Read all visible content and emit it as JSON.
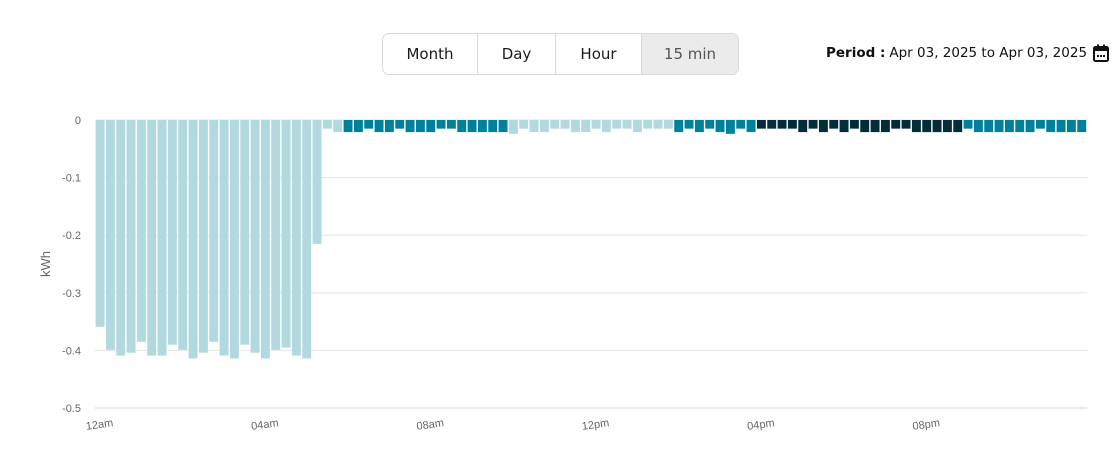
{
  "granularity": {
    "options": [
      "Month",
      "Day",
      "Hour",
      "15 min"
    ],
    "selected": "15 min"
  },
  "period": {
    "label": "Period :",
    "value": "Apr 03, 2025 to Apr 03, 2025",
    "icon": "calendar-icon"
  },
  "colors": {
    "light": "#b2d9df",
    "teal": "#00819b",
    "dark": "#032d38",
    "grid": "#e6e6e6",
    "baseline": "#ccd6eb"
  },
  "chart_data": {
    "type": "bar",
    "title": "",
    "xlabel": "",
    "ylabel": "kWh",
    "ylim": [
      -0.5,
      0
    ],
    "yticks": [
      "0",
      "-0.1",
      "-0.2",
      "-0.3",
      "-0.4",
      "-0.5"
    ],
    "xtick_labels": [
      "12am",
      "04am",
      "08am",
      "12pm",
      "04pm",
      "08pm"
    ],
    "interval": "15 min",
    "grid": true,
    "values": [
      -0.359,
      -0.399,
      -0.409,
      -0.404,
      -0.385,
      -0.409,
      -0.409,
      -0.39,
      -0.399,
      -0.414,
      -0.404,
      -0.385,
      -0.409,
      -0.414,
      -0.39,
      -0.404,
      -0.414,
      -0.399,
      -0.395,
      -0.409,
      -0.414,
      -0.215,
      -0.015,
      -0.021,
      -0.021,
      -0.021,
      -0.015,
      -0.021,
      -0.021,
      -0.015,
      -0.021,
      -0.021,
      -0.021,
      -0.015,
      -0.015,
      -0.021,
      -0.021,
      -0.021,
      -0.021,
      -0.021,
      -0.024,
      -0.015,
      -0.021,
      -0.021,
      -0.015,
      -0.015,
      -0.021,
      -0.021,
      -0.015,
      -0.021,
      -0.015,
      -0.015,
      -0.021,
      -0.015,
      -0.015,
      -0.015,
      -0.021,
      -0.015,
      -0.021,
      -0.015,
      -0.021,
      -0.024,
      -0.015,
      -0.021,
      -0.015,
      -0.015,
      -0.015,
      -0.015,
      -0.021,
      -0.015,
      -0.021,
      -0.015,
      -0.021,
      -0.015,
      -0.021,
      -0.021,
      -0.021,
      -0.015,
      -0.015,
      -0.021,
      -0.021,
      -0.021,
      -0.021,
      -0.021,
      -0.015,
      -0.021,
      -0.021,
      -0.021,
      -0.021,
      -0.021,
      -0.021,
      -0.015,
      -0.021,
      -0.021,
      -0.021,
      -0.021
    ],
    "bar_tiers": [
      "light",
      "light",
      "light",
      "light",
      "light",
      "light",
      "light",
      "light",
      "light",
      "light",
      "light",
      "light",
      "light",
      "light",
      "light",
      "light",
      "light",
      "light",
      "light",
      "light",
      "light",
      "light",
      "light",
      "light",
      "teal",
      "teal",
      "teal",
      "teal",
      "teal",
      "teal",
      "teal",
      "teal",
      "teal",
      "teal",
      "teal",
      "teal",
      "teal",
      "teal",
      "teal",
      "teal",
      "light",
      "light",
      "light",
      "light",
      "light",
      "light",
      "light",
      "light",
      "light",
      "light",
      "light",
      "light",
      "light",
      "light",
      "light",
      "light",
      "teal",
      "teal",
      "teal",
      "teal",
      "teal",
      "teal",
      "teal",
      "teal",
      "dark",
      "dark",
      "dark",
      "dark",
      "dark",
      "dark",
      "dark",
      "dark",
      "dark",
      "dark",
      "dark",
      "dark",
      "dark",
      "dark",
      "dark",
      "dark",
      "dark",
      "dark",
      "dark",
      "dark",
      "teal",
      "teal",
      "teal",
      "teal",
      "teal",
      "teal",
      "teal",
      "teal",
      "teal",
      "teal",
      "teal",
      "teal"
    ]
  }
}
